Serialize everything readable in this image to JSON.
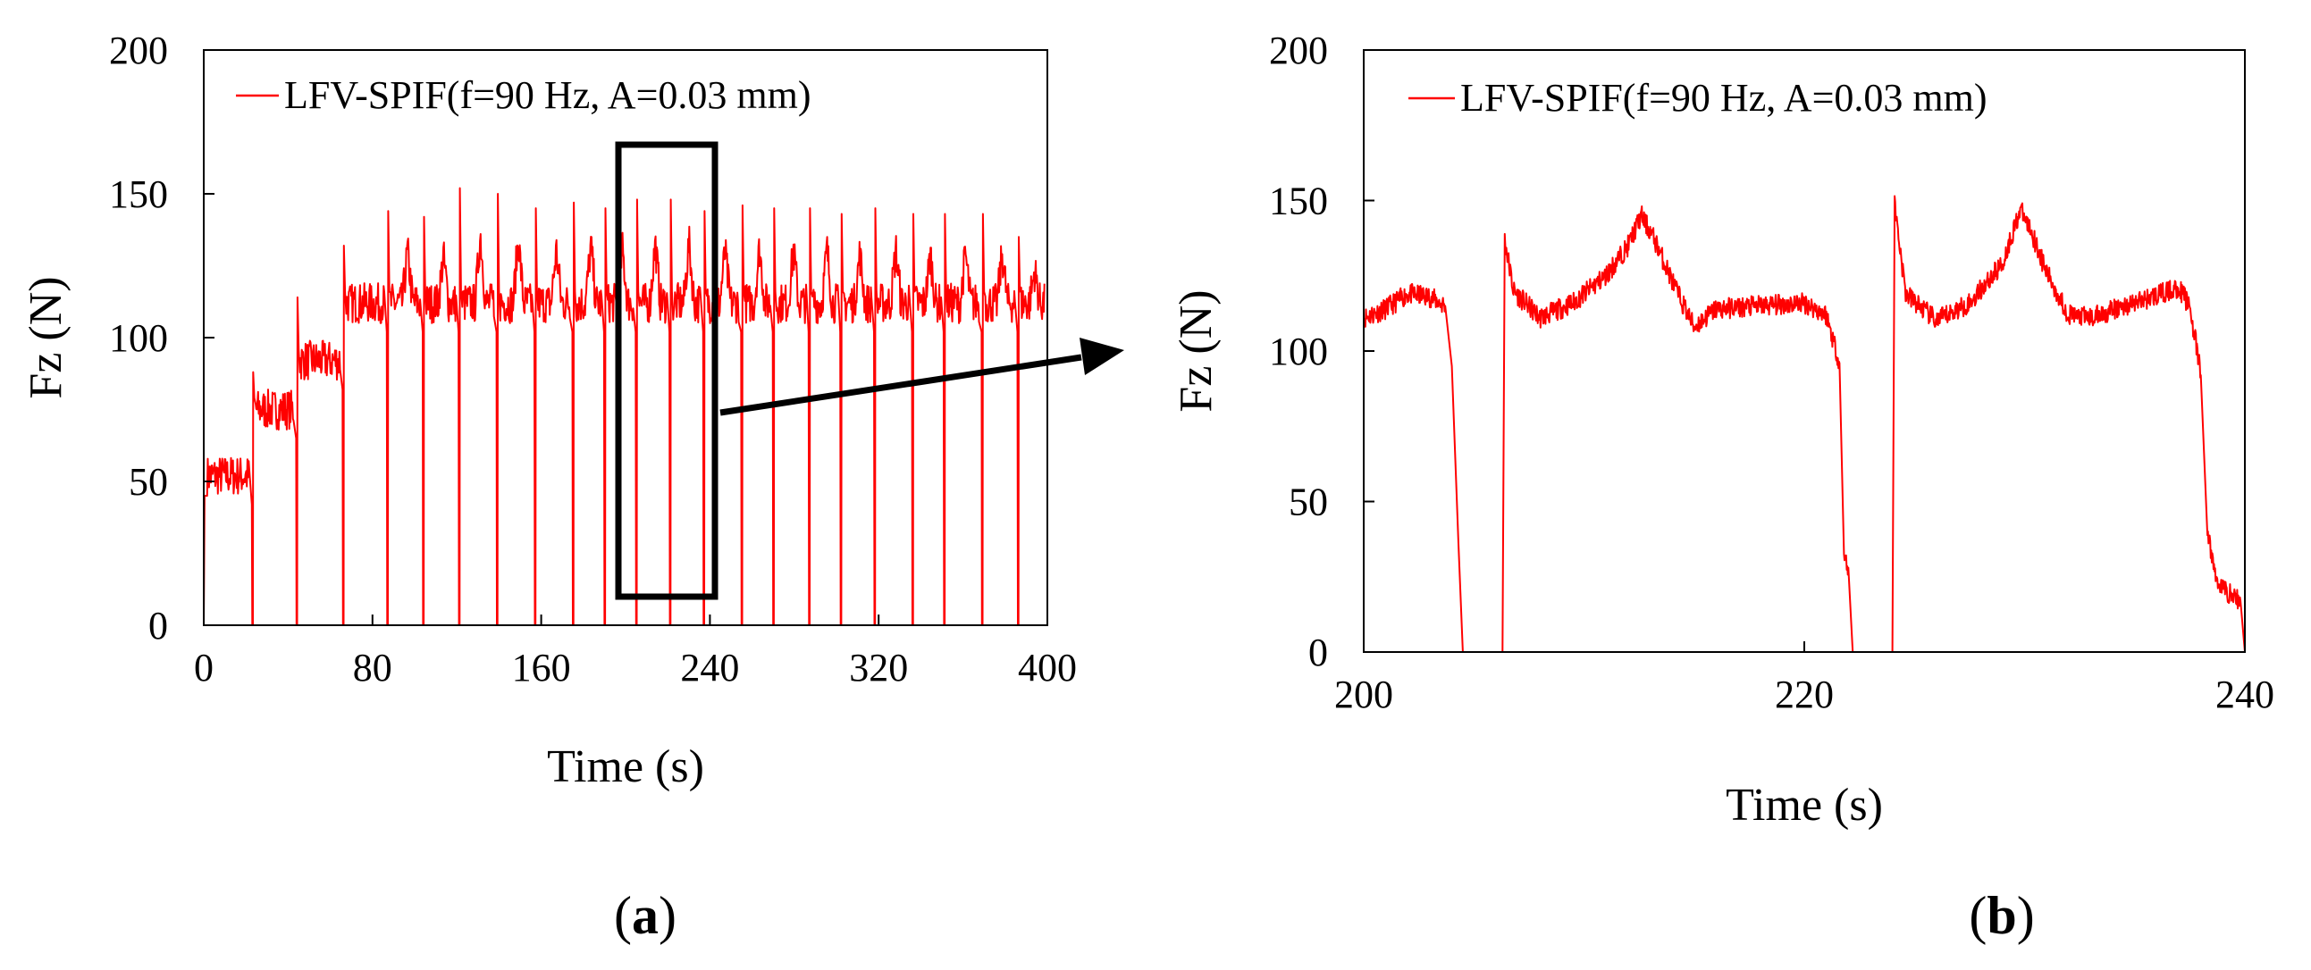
{
  "colors": {
    "series": "#ff0000",
    "axis": "#000000",
    "background": "#ffffff"
  },
  "panel_labels": {
    "a": "a",
    "b": "b"
  },
  "chart_data": [
    {
      "type": "line",
      "panel": "a",
      "title": "",
      "xlabel": "Time (s)",
      "ylabel": "Fz (N)",
      "xlim": [
        0,
        400
      ],
      "ylim": [
        0,
        200
      ],
      "x_ticks": [
        "0",
        "80",
        "160",
        "240",
        "320",
        "400"
      ],
      "y_ticks": [
        "0",
        "50",
        "100",
        "150",
        "200"
      ],
      "legend": {
        "label": "LFV-SPIF(f=90 Hz, A=0.03 mm)",
        "position": "top-left"
      },
      "annotation": {
        "type": "zoom-box",
        "x_range": [
          196,
          243
        ],
        "y_range": [
          9,
          167
        ],
        "arrow_to": "panel b"
      },
      "series": [
        {
          "name": "LFV-SPIF(f=90 Hz, A=0.03 mm)",
          "baseline_stages": [
            {
              "x_start": 0,
              "x_end": 23,
              "level": 52
            },
            {
              "x_start": 23,
              "x_end": 44,
              "level": 75
            },
            {
              "x_start": 44,
              "x_end": 66,
              "level": 92
            },
            {
              "x_start": 66,
              "x_end": 86,
              "level": 112
            },
            {
              "x_start": 86,
              "x_end": 400,
              "level": 112
            }
          ],
          "dropout_times": [
            23,
            44,
            66,
            87,
            104,
            121,
            139,
            157,
            175,
            190,
            205,
            221,
            237,
            255,
            270,
            287,
            302,
            318,
            336,
            351,
            369,
            386
          ],
          "peak_values": [
            60,
            88,
            114,
            132,
            144,
            142,
            152,
            150,
            145,
            147,
            145,
            148,
            148,
            144,
            146,
            145,
            145,
            143,
            145,
            143,
            143,
            143
          ]
        }
      ]
    },
    {
      "type": "line",
      "panel": "b",
      "title": "",
      "xlabel": "Time (s)",
      "ylabel": "Fz (N)",
      "xlim": [
        200,
        240
      ],
      "ylim": [
        0,
        200
      ],
      "x_ticks": [
        "200",
        "220",
        "240"
      ],
      "y_ticks": [
        "0",
        "50",
        "100",
        "150",
        "200"
      ],
      "legend": {
        "label": "LFV-SPIF(f=90 Hz, A=0.03 mm)",
        "position": "top-left"
      },
      "series": [
        {
          "name": "LFV-SPIF(f=90 Hz, A=0.03 mm)",
          "x": [
            200,
            201,
            202,
            203,
            203.7,
            204,
            204.3,
            204.5,
            206.3,
            206.4,
            206.8,
            208,
            209.5,
            211,
            212,
            212.6,
            213.2,
            214.2,
            215,
            216,
            218,
            220,
            221,
            221.6,
            221.8,
            222,
            222.2,
            224,
            224.1,
            224.6,
            226,
            227.5,
            229,
            229.8,
            230.3,
            231,
            232,
            233,
            235,
            237,
            237.5,
            238,
            238.3,
            238.7,
            239.2,
            239.8,
            240
          ],
          "y": [
            111,
            114,
            119,
            118,
            115,
            95,
            36,
            0,
            0,
            137,
            120,
            111,
            116,
            125,
            135,
            145,
            137,
            120,
            108,
            114,
            115,
            116,
            112,
            96,
            32,
            28,
            0,
            0,
            149,
            119,
            110,
            116,
            129,
            147,
            140,
            126,
            112,
            111,
            116,
            121,
            115,
            92,
            40,
            24,
            20,
            17,
            0
          ]
        }
      ]
    }
  ]
}
